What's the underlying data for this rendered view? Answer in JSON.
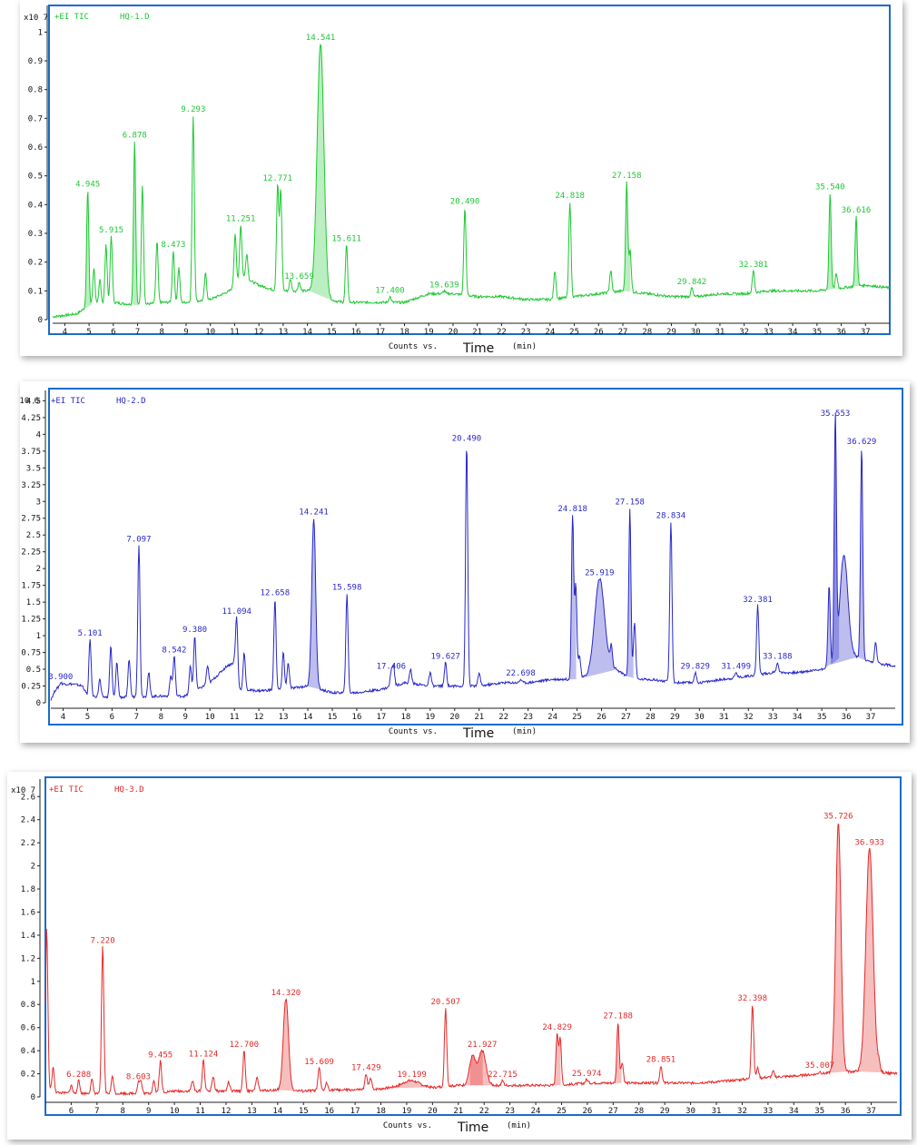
{
  "chart_data": [
    {
      "type": "line",
      "header": "+EI TIC",
      "file": "HQ-1.D",
      "exponent": "x10 7",
      "color": "#1ec832",
      "x_axis_label_prefix": "Counts vs.",
      "x_axis_label_main": "Time",
      "x_axis_unit": "(min)",
      "xlim": [
        3.5,
        38
      ],
      "ylim": [
        0,
        1.08
      ],
      "yticks": [
        0,
        0.1,
        0.2,
        0.3,
        0.4,
        0.5,
        0.6,
        0.7,
        0.8,
        0.9,
        1
      ],
      "ytick_labels": [
        "0",
        "0.1",
        "0.2",
        "0.3",
        "0.4",
        "0.5",
        "0.6",
        "0.7",
        "0.8",
        "0.9",
        "1"
      ],
      "xticks": [
        4,
        5,
        6,
        7,
        8,
        9,
        10,
        11,
        12,
        13,
        14,
        15,
        16,
        17,
        18,
        19,
        20,
        21,
        22,
        23,
        24,
        25,
        26,
        27,
        28,
        29,
        30,
        31,
        32,
        33,
        34,
        35,
        36,
        37
      ],
      "baseline": [
        [
          3.5,
          0.01
        ],
        [
          4.5,
          0.02
        ],
        [
          5,
          0.05
        ],
        [
          6,
          0.06
        ],
        [
          7,
          0.05
        ],
        [
          8,
          0.06
        ],
        [
          9,
          0.06
        ],
        [
          10,
          0.07
        ],
        [
          10.8,
          0.1
        ],
        [
          11.3,
          0.15
        ],
        [
          12,
          0.12
        ],
        [
          12.7,
          0.1
        ],
        [
          13.5,
          0.1
        ],
        [
          14.3,
          0.1
        ],
        [
          14.8,
          0.07
        ],
        [
          15.5,
          0.06
        ],
        [
          17,
          0.06
        ],
        [
          18,
          0.06
        ],
        [
          19,
          0.09
        ],
        [
          20,
          0.09
        ],
        [
          21,
          0.08
        ],
        [
          22,
          0.08
        ],
        [
          23,
          0.07
        ],
        [
          24,
          0.07
        ],
        [
          25,
          0.08
        ],
        [
          26,
          0.09
        ],
        [
          27,
          0.1
        ],
        [
          28,
          0.09
        ],
        [
          29,
          0.08
        ],
        [
          30,
          0.08
        ],
        [
          31,
          0.09
        ],
        [
          32,
          0.09
        ],
        [
          33,
          0.1
        ],
        [
          34,
          0.1
        ],
        [
          35,
          0.1
        ],
        [
          36,
          0.11
        ],
        [
          37,
          0.12
        ],
        [
          38,
          0.11
        ]
      ],
      "peaks": [
        {
          "t": 4.945,
          "h": 0.45,
          "label": "4.945",
          "fill": true
        },
        {
          "t": 5.2,
          "h": 0.18
        },
        {
          "t": 5.45,
          "h": 0.14
        },
        {
          "t": 5.7,
          "h": 0.26
        },
        {
          "t": 5.915,
          "h": 0.29,
          "label": "5.915"
        },
        {
          "t": 6.878,
          "h": 0.62,
          "label": "6.878",
          "fill": true
        },
        {
          "t": 7.2,
          "h": 0.47
        },
        {
          "t": 7.8,
          "h": 0.27
        },
        {
          "t": 8.473,
          "h": 0.24,
          "label": "8.473"
        },
        {
          "t": 8.7,
          "h": 0.18
        },
        {
          "t": 9.293,
          "h": 0.71,
          "label": "9.293"
        },
        {
          "t": 9.8,
          "h": 0.16
        },
        {
          "t": 11.02,
          "h": 0.3
        },
        {
          "t": 11.251,
          "h": 0.33,
          "label": "11.251"
        },
        {
          "t": 11.5,
          "h": 0.23
        },
        {
          "t": 12.771,
          "h": 0.47,
          "label": "12.771"
        },
        {
          "t": 12.9,
          "h": 0.45
        },
        {
          "t": 13.3,
          "h": 0.14
        },
        {
          "t": 13.659,
          "h": 0.13,
          "label": "13.659"
        },
        {
          "t": 14.541,
          "h": 0.96,
          "label": "14.541",
          "fill": true,
          "w": 0.14
        },
        {
          "t": 15.611,
          "h": 0.26,
          "label": "15.611"
        },
        {
          "t": 17.4,
          "h": 0.08,
          "label": "17.400"
        },
        {
          "t": 19.639,
          "h": 0.1,
          "label": "19.639"
        },
        {
          "t": 20.49,
          "h": 0.39,
          "label": "20.490"
        },
        {
          "t": 24.2,
          "h": 0.17
        },
        {
          "t": 24.818,
          "h": 0.41,
          "label": "24.818"
        },
        {
          "t": 26.5,
          "h": 0.17
        },
        {
          "t": 27.158,
          "h": 0.48,
          "label": "27.158",
          "fill": true
        },
        {
          "t": 27.3,
          "h": 0.24
        },
        {
          "t": 29.842,
          "h": 0.11,
          "label": "29.842"
        },
        {
          "t": 32.381,
          "h": 0.17,
          "label": "32.381"
        },
        {
          "t": 35.54,
          "h": 0.44,
          "label": "35.540",
          "fill": true
        },
        {
          "t": 35.8,
          "h": 0.16
        },
        {
          "t": 36.616,
          "h": 0.36,
          "label": "36.616",
          "fill": true
        }
      ]
    },
    {
      "type": "line",
      "header": "+EI TIC",
      "file": "HQ-2.D",
      "exponent": "x10 6",
      "color": "#2828c8",
      "x_axis_label_prefix": "Counts vs.",
      "x_axis_label_main": "Time",
      "x_axis_unit": "(min)",
      "xlim": [
        3.5,
        38
      ],
      "ylim": [
        0,
        4.6
      ],
      "yticks": [
        0,
        0.25,
        0.5,
        0.75,
        1,
        1.25,
        1.5,
        1.75,
        2,
        2.25,
        2.5,
        2.75,
        3,
        3.25,
        3.5,
        3.75,
        4,
        4.25,
        4.5
      ],
      "ytick_labels": [
        "0",
        "0.25",
        "0.5",
        "0.75",
        "1",
        "1.25",
        "1.5",
        "1.75",
        "2",
        "2.25",
        "2.5",
        "2.75",
        "3",
        "3.25",
        "3.5",
        "3.75",
        "4",
        "4.25",
        "4.5"
      ],
      "xticks": [
        4,
        5,
        6,
        7,
        8,
        9,
        10,
        11,
        12,
        13,
        14,
        15,
        16,
        17,
        18,
        19,
        20,
        21,
        22,
        23,
        24,
        25,
        26,
        27,
        28,
        29,
        30,
        31,
        32,
        33,
        34,
        35,
        36,
        37
      ],
      "baseline": [
        [
          3.5,
          0.05
        ],
        [
          3.7,
          0.2
        ],
        [
          4,
          0.28
        ],
        [
          4.4,
          0.28
        ],
        [
          4.8,
          0.25
        ],
        [
          5,
          0.1
        ],
        [
          6,
          0.08
        ],
        [
          7,
          0.09
        ],
        [
          8,
          0.1
        ],
        [
          9,
          0.1
        ],
        [
          10,
          0.3
        ],
        [
          10.7,
          0.55
        ],
        [
          11,
          0.6
        ],
        [
          11.1,
          0.2
        ],
        [
          12,
          0.18
        ],
        [
          13,
          0.2
        ],
        [
          14,
          0.25
        ],
        [
          14.5,
          0.2
        ],
        [
          15,
          0.15
        ],
        [
          16,
          0.15
        ],
        [
          17,
          0.2
        ],
        [
          18,
          0.3
        ],
        [
          19,
          0.25
        ],
        [
          20,
          0.25
        ],
        [
          21,
          0.25
        ],
        [
          22,
          0.3
        ],
        [
          23,
          0.3
        ],
        [
          24,
          0.35
        ],
        [
          25,
          0.35
        ],
        [
          25.5,
          0.4
        ],
        [
          26,
          0.5
        ],
        [
          26.6,
          0.5
        ],
        [
          27,
          0.4
        ],
        [
          27.5,
          0.35
        ],
        [
          28,
          0.35
        ],
        [
          29,
          0.3
        ],
        [
          30,
          0.3
        ],
        [
          31,
          0.35
        ],
        [
          32,
          0.4
        ],
        [
          33,
          0.45
        ],
        [
          34,
          0.45
        ],
        [
          35,
          0.5
        ],
        [
          35.5,
          0.6
        ],
        [
          36,
          0.75
        ],
        [
          37,
          0.6
        ],
        [
          38,
          0.55
        ]
      ],
      "peaks": [
        {
          "t": 3.9,
          "h": 0.3,
          "label": "3.900"
        },
        {
          "t": 5.101,
          "h": 0.95,
          "label": "5.101"
        },
        {
          "t": 5.5,
          "h": 0.35
        },
        {
          "t": 5.95,
          "h": 0.85
        },
        {
          "t": 6.2,
          "h": 0.6
        },
        {
          "t": 6.7,
          "h": 0.65
        },
        {
          "t": 7.097,
          "h": 2.35,
          "label": "7.097"
        },
        {
          "t": 7.5,
          "h": 0.45
        },
        {
          "t": 8.4,
          "h": 0.4
        },
        {
          "t": 8.542,
          "h": 0.7,
          "label": "8.542"
        },
        {
          "t": 9.2,
          "h": 0.55
        },
        {
          "t": 9.38,
          "h": 1.0,
          "label": "9.380"
        },
        {
          "t": 9.9,
          "h": 0.55
        },
        {
          "t": 11.094,
          "h": 1.27,
          "label": "11.094"
        },
        {
          "t": 11.4,
          "h": 0.75
        },
        {
          "t": 12.658,
          "h": 1.55,
          "label": "12.658"
        },
        {
          "t": 13.0,
          "h": 0.75
        },
        {
          "t": 13.2,
          "h": 0.6
        },
        {
          "t": 14.241,
          "h": 2.75,
          "label": "14.241",
          "fill": true,
          "w": 0.08
        },
        {
          "t": 15.598,
          "h": 1.63,
          "label": "15.598"
        },
        {
          "t": 17.406,
          "h": 0.45,
          "label": "17.406"
        },
        {
          "t": 17.5,
          "h": 0.55
        },
        {
          "t": 18.2,
          "h": 0.5
        },
        {
          "t": 19.0,
          "h": 0.45
        },
        {
          "t": 19.627,
          "h": 0.6,
          "label": "19.627"
        },
        {
          "t": 20.49,
          "h": 3.85,
          "label": "20.490"
        },
        {
          "t": 21.0,
          "h": 0.45
        },
        {
          "t": 22.698,
          "h": 0.35,
          "label": "22.698"
        },
        {
          "t": 24.818,
          "h": 2.8,
          "label": "24.818",
          "fill": true
        },
        {
          "t": 24.95,
          "h": 1.75
        },
        {
          "t": 25.1,
          "h": 0.7
        },
        {
          "t": 25.919,
          "h": 1.85,
          "label": "25.919",
          "fill": true,
          "w": 0.2
        },
        {
          "t": 26.4,
          "h": 0.8
        },
        {
          "t": 27.158,
          "h": 2.9,
          "label": "27.158",
          "fill": true
        },
        {
          "t": 27.35,
          "h": 1.2
        },
        {
          "t": 28.834,
          "h": 2.7,
          "label": "28.834"
        },
        {
          "t": 29.829,
          "h": 0.45,
          "label": "29.829"
        },
        {
          "t": 31.499,
          "h": 0.45,
          "label": "31.499"
        },
        {
          "t": 32.381,
          "h": 1.45,
          "label": "32.381"
        },
        {
          "t": 33.188,
          "h": 0.6,
          "label": "33.188"
        },
        {
          "t": 35.3,
          "h": 1.75,
          "fill": true
        },
        {
          "t": 35.553,
          "h": 4.22,
          "label": "35.553",
          "fill": true
        },
        {
          "t": 35.9,
          "h": 2.2,
          "fill": true,
          "w": 0.16
        },
        {
          "t": 36.629,
          "h": 3.8,
          "label": "36.629",
          "fill": true
        },
        {
          "t": 37.2,
          "h": 0.9
        }
      ]
    },
    {
      "type": "line",
      "header": "+EI TIC",
      "file": "HQ-3.D",
      "exponent": "x10 7",
      "color": "#e52828",
      "x_axis_label_prefix": "Counts vs.",
      "x_axis_label_main": "Time",
      "x_axis_unit": "(min)",
      "xlim": [
        5.0,
        38
      ],
      "ylim": [
        0,
        2.72
      ],
      "yticks": [
        0,
        0.2,
        0.4,
        0.6,
        0.8,
        1,
        1.2,
        1.4,
        1.6,
        1.8,
        2,
        2.2,
        2.4,
        2.6
      ],
      "ytick_labels": [
        "0",
        "0.2",
        "0.4",
        "0.6",
        "0.8",
        "1",
        "1.2",
        "1.4",
        "1.6",
        "1.8",
        "2",
        "2.2",
        "2.4",
        "2.6"
      ],
      "xticks": [
        6,
        7,
        8,
        9,
        10,
        11,
        12,
        13,
        14,
        15,
        16,
        17,
        18,
        19,
        20,
        21,
        22,
        23,
        24,
        25,
        26,
        27,
        28,
        29,
        30,
        31,
        32,
        33,
        34,
        35,
        36,
        37
      ],
      "baseline": [
        [
          5,
          0.08
        ],
        [
          5.3,
          0.04
        ],
        [
          6,
          0.03
        ],
        [
          7,
          0.03
        ],
        [
          8,
          0.03
        ],
        [
          9,
          0.03
        ],
        [
          10,
          0.05
        ],
        [
          11,
          0.05
        ],
        [
          12,
          0.05
        ],
        [
          13,
          0.05
        ],
        [
          14,
          0.06
        ],
        [
          15,
          0.05
        ],
        [
          16,
          0.06
        ],
        [
          17,
          0.06
        ],
        [
          18,
          0.07
        ],
        [
          19,
          0.1
        ],
        [
          20,
          0.08
        ],
        [
          21,
          0.1
        ],
        [
          22,
          0.1
        ],
        [
          23,
          0.1
        ],
        [
          24,
          0.1
        ],
        [
          25,
          0.1
        ],
        [
          26,
          0.12
        ],
        [
          27,
          0.12
        ],
        [
          28,
          0.12
        ],
        [
          29,
          0.12
        ],
        [
          30,
          0.12
        ],
        [
          31,
          0.13
        ],
        [
          32,
          0.15
        ],
        [
          33,
          0.17
        ],
        [
          34,
          0.18
        ],
        [
          35,
          0.2
        ],
        [
          36,
          0.22
        ],
        [
          37,
          0.22
        ],
        [
          38,
          0.2
        ]
      ],
      "peaks": [
        {
          "t": 5.05,
          "h": 1.45
        },
        {
          "t": 5.3,
          "h": 0.25
        },
        {
          "t": 6.0,
          "h": 0.1
        },
        {
          "t": 6.288,
          "h": 0.14,
          "label": "6.288"
        },
        {
          "t": 6.8,
          "h": 0.15
        },
        {
          "t": 7.22,
          "h": 1.3,
          "label": "7.220"
        },
        {
          "t": 7.6,
          "h": 0.18
        },
        {
          "t": 8.603,
          "h": 0.12,
          "label": "8.603"
        },
        {
          "t": 8.7,
          "h": 0.13
        },
        {
          "t": 9.2,
          "h": 0.14
        },
        {
          "t": 9.455,
          "h": 0.31,
          "label": "9.455"
        },
        {
          "t": 10.7,
          "h": 0.14
        },
        {
          "t": 11.124,
          "h": 0.32,
          "label": "11.124"
        },
        {
          "t": 11.5,
          "h": 0.18
        },
        {
          "t": 12.1,
          "h": 0.13
        },
        {
          "t": 12.7,
          "h": 0.4,
          "label": "12.700"
        },
        {
          "t": 13.2,
          "h": 0.18
        },
        {
          "t": 14.32,
          "h": 0.85,
          "label": "14.320",
          "fill": true,
          "w": 0.1
        },
        {
          "t": 15.609,
          "h": 0.25,
          "label": "15.609"
        },
        {
          "t": 15.9,
          "h": 0.12
        },
        {
          "t": 17.429,
          "h": 0.2,
          "label": "17.429"
        },
        {
          "t": 17.6,
          "h": 0.16
        },
        {
          "t": 19.199,
          "h": 0.14,
          "label": "19.199",
          "fill": true,
          "w": 0.3
        },
        {
          "t": 20.507,
          "h": 0.77,
          "label": "20.507"
        },
        {
          "t": 21.55,
          "h": 0.35,
          "fill": true,
          "w": 0.12
        },
        {
          "t": 21.927,
          "h": 0.4,
          "label": "21.927",
          "fill": true,
          "w": 0.14
        },
        {
          "t": 22.715,
          "h": 0.14,
          "label": "22.715"
        },
        {
          "t": 24.829,
          "h": 0.55,
          "label": "24.829",
          "fill": true
        },
        {
          "t": 24.95,
          "h": 0.5
        },
        {
          "t": 25.974,
          "h": 0.15,
          "label": "25.974"
        },
        {
          "t": 27.188,
          "h": 0.65,
          "label": "27.188",
          "fill": true
        },
        {
          "t": 27.35,
          "h": 0.3
        },
        {
          "t": 28.851,
          "h": 0.27,
          "label": "28.851"
        },
        {
          "t": 32.398,
          "h": 0.8,
          "label": "32.398"
        },
        {
          "t": 32.6,
          "h": 0.25
        },
        {
          "t": 33.2,
          "h": 0.22
        },
        {
          "t": 35.007,
          "h": 0.22,
          "label": "35.007"
        },
        {
          "t": 35.726,
          "h": 2.38,
          "label": "35.726",
          "fill": true,
          "w": 0.1
        },
        {
          "t": 36.933,
          "h": 2.15,
          "label": "36.933",
          "fill": true,
          "w": 0.14
        },
        {
          "t": 37.3,
          "h": 0.28
        }
      ]
    }
  ]
}
